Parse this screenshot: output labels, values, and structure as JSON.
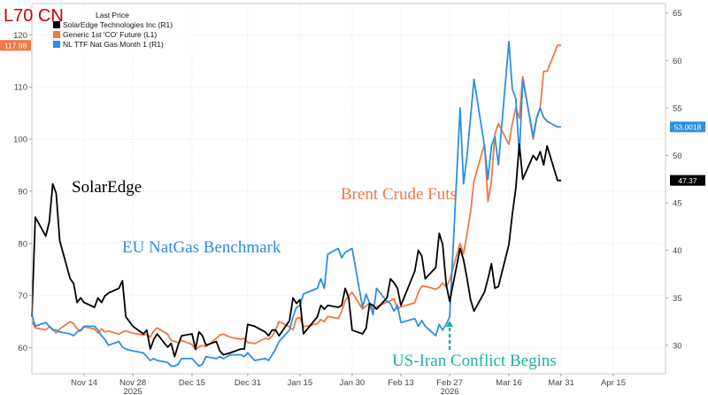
{
  "corner_label": "L70 CN",
  "chart_data": {
    "type": "line",
    "title": "",
    "legend": {
      "title": "Last Price",
      "position": "top-left",
      "entries": [
        {
          "label": "SolarEdge Technologies Inc (R1)",
          "color": "#000000"
        },
        {
          "label": "Generic 1st 'CO' Future (L1)",
          "color": "#f07842"
        },
        {
          "label": "NL TTF Nat Gas Month 1 (R1)",
          "color": "#2b8fe6"
        }
      ]
    },
    "x_axis": {
      "ticks": [
        {
          "date": "2025-11-14",
          "label": "Nov 14"
        },
        {
          "date": "2025-11-28",
          "label": "Nov 28"
        },
        {
          "date": "2025-12-15",
          "label": "Dec 15"
        },
        {
          "date": "2025-12-31",
          "label": "Dec 31"
        },
        {
          "date": "2026-01-15",
          "label": "Jan 15"
        },
        {
          "date": "2026-01-30",
          "label": "Jan 30"
        },
        {
          "date": "2026-02-13",
          "label": "Feb 13"
        },
        {
          "date": "2026-02-27",
          "label": "Feb 27"
        },
        {
          "date": "2026-03-16",
          "label": "Mar 16"
        },
        {
          "date": "2026-03-31",
          "label": "Mar 31"
        },
        {
          "date": "2026-04-15",
          "label": "Apr 15"
        }
      ],
      "year_labels": [
        {
          "date": "2025-11-28",
          "label": "2025"
        },
        {
          "date": "2026-02-27",
          "label": "2026"
        }
      ],
      "range": [
        "2025-10-30",
        "2026-04-30"
      ]
    },
    "left_axis": {
      "ticks": [
        60,
        70,
        80,
        90,
        100,
        110,
        120
      ],
      "range": [
        55,
        126
      ]
    },
    "right_axis": {
      "ticks": [
        30,
        35,
        40,
        45,
        50,
        55,
        60,
        65
      ],
      "range": [
        27,
        66
      ]
    },
    "last_value_tags": [
      {
        "value": 117.98,
        "label": "117.98",
        "axis": "left",
        "color": "#f07842"
      },
      {
        "value": 53.0018,
        "label": "53.0018",
        "axis": "right",
        "color": "#2b8fe6"
      },
      {
        "value": 47.37,
        "label": "47.37",
        "axis": "right",
        "color": "#000000"
      }
    ],
    "annotations": [
      {
        "text": "SolarEdge",
        "color": "#000000"
      },
      {
        "text": "EU NatGas Benchmark",
        "color": "#2b8fe6"
      },
      {
        "text": "Brent Crude Futs",
        "color": "#f07842"
      },
      {
        "text": "US-Iran Conflict Begins",
        "color": "#19b3a0"
      }
    ],
    "series": [
      {
        "name": "SolarEdge Technologies Inc (R1)",
        "axis": "right",
        "color": "#000000",
        "x": [
          "2025-10-30",
          "2025-10-31",
          "2025-11-03",
          "2025-11-04",
          "2025-11-05",
          "2025-11-06",
          "2025-11-07",
          "2025-11-10",
          "2025-11-11",
          "2025-11-12",
          "2025-11-13",
          "2025-11-14",
          "2025-11-17",
          "2025-11-18",
          "2025-11-19",
          "2025-11-20",
          "2025-11-21",
          "2025-11-24",
          "2025-11-25",
          "2025-11-26",
          "2025-11-28",
          "2025-12-01",
          "2025-12-02",
          "2025-12-03",
          "2025-12-04",
          "2025-12-05",
          "2025-12-08",
          "2025-12-09",
          "2025-12-10",
          "2025-12-11",
          "2025-12-12",
          "2025-12-15",
          "2025-12-16",
          "2025-12-17",
          "2025-12-18",
          "2025-12-19",
          "2025-12-22",
          "2025-12-23",
          "2025-12-24",
          "2025-12-26",
          "2025-12-29",
          "2025-12-30",
          "2025-12-31",
          "2026-01-02",
          "2026-01-05",
          "2026-01-06",
          "2026-01-07",
          "2026-01-08",
          "2026-01-09",
          "2026-01-12",
          "2026-01-13",
          "2026-01-14",
          "2026-01-15",
          "2026-01-16",
          "2026-01-20",
          "2026-01-21",
          "2026-01-22",
          "2026-01-23",
          "2026-01-26",
          "2026-01-27",
          "2026-01-28",
          "2026-01-29",
          "2026-01-30",
          "2026-02-02",
          "2026-02-03",
          "2026-02-04",
          "2026-02-05",
          "2026-02-06",
          "2026-02-09",
          "2026-02-10",
          "2026-02-11",
          "2026-02-12",
          "2026-02-13",
          "2026-02-17",
          "2026-02-18",
          "2026-02-19",
          "2026-02-20",
          "2026-02-23",
          "2026-02-24",
          "2026-02-25",
          "2026-02-26",
          "2026-02-27",
          "2026-03-02",
          "2026-03-03",
          "2026-03-04",
          "2026-03-05",
          "2026-03-06",
          "2026-03-09",
          "2026-03-10",
          "2026-03-11",
          "2026-03-12",
          "2026-03-13",
          "2026-03-16",
          "2026-03-17",
          "2026-03-18",
          "2026-03-19",
          "2026-03-20",
          "2026-03-23",
          "2026-03-24",
          "2026-03-25",
          "2026-03-26",
          "2026-03-27",
          "2026-03-30",
          "2026-03-31"
        ],
        "y": [
          33.0,
          43.5,
          41.5,
          43.0,
          47.0,
          46.0,
          41.0,
          37.0,
          36.5,
          34.5,
          35.0,
          34.5,
          34.0,
          35.0,
          34.5,
          35.2,
          35.5,
          36.0,
          36.8,
          33.0,
          32.0,
          31.2,
          31.6,
          29.6,
          30.6,
          31.2,
          29.8,
          30.2,
          28.8,
          30.0,
          31.0,
          31.2,
          29.6,
          31.4,
          31.0,
          30.0,
          30.4,
          29.4,
          29.0,
          29.2,
          29.6,
          29.6,
          32.2,
          32.0,
          31.4,
          31.0,
          31.6,
          31.6,
          31.0,
          32.6,
          35.0,
          34.4,
          34.8,
          31.2,
          33.0,
          34.2,
          33.8,
          34.2,
          34.0,
          34.2,
          36.0,
          35.0,
          31.6,
          31.2,
          31.8,
          34.4,
          34.2,
          33.8,
          35.0,
          37.0,
          36.6,
          36.0,
          34.2,
          37.8,
          40.0,
          39.4,
          37.0,
          38.2,
          41.8,
          40.6,
          36.4,
          34.6,
          40.2,
          39.0,
          37.0,
          34.8,
          33.6,
          35.6,
          37.0,
          38.6,
          36.0,
          36.2,
          40.6,
          43.8,
          46.5,
          51.2,
          47.5,
          50.0,
          49.5,
          50.4,
          49.0,
          51.0,
          47.37,
          47.37
        ]
      },
      {
        "name": "Generic 1st 'CO' Future (L1)",
        "axis": "left",
        "color": "#f07842",
        "x": [
          "2025-10-30",
          "2025-10-31",
          "2025-11-03",
          "2025-11-04",
          "2025-11-05",
          "2025-11-06",
          "2025-11-07",
          "2025-11-10",
          "2025-11-11",
          "2025-11-12",
          "2025-11-13",
          "2025-11-14",
          "2025-11-17",
          "2025-11-18",
          "2025-11-19",
          "2025-11-20",
          "2025-11-21",
          "2025-11-24",
          "2025-11-25",
          "2025-11-26",
          "2025-11-28",
          "2025-12-01",
          "2025-12-02",
          "2025-12-03",
          "2025-12-04",
          "2025-12-05",
          "2025-12-08",
          "2025-12-09",
          "2025-12-10",
          "2025-12-11",
          "2025-12-12",
          "2025-12-15",
          "2025-12-16",
          "2025-12-17",
          "2025-12-18",
          "2025-12-19",
          "2025-12-22",
          "2025-12-23",
          "2025-12-24",
          "2025-12-26",
          "2025-12-29",
          "2025-12-30",
          "2025-12-31",
          "2026-01-02",
          "2026-01-05",
          "2026-01-06",
          "2026-01-07",
          "2026-01-08",
          "2026-01-09",
          "2026-01-12",
          "2026-01-13",
          "2026-01-14",
          "2026-01-15",
          "2026-01-16",
          "2026-01-20",
          "2026-01-21",
          "2026-01-22",
          "2026-01-23",
          "2026-01-26",
          "2026-01-27",
          "2026-01-28",
          "2026-01-29",
          "2026-01-30",
          "2026-02-02",
          "2026-02-03",
          "2026-02-04",
          "2026-02-05",
          "2026-02-06",
          "2026-02-09",
          "2026-02-10",
          "2026-02-11",
          "2026-02-12",
          "2026-02-13",
          "2026-02-17",
          "2026-02-18",
          "2026-02-19",
          "2026-02-20",
          "2026-02-23",
          "2026-02-24",
          "2026-02-25",
          "2026-02-26",
          "2026-02-27",
          "2026-03-02",
          "2026-03-03",
          "2026-03-04",
          "2026-03-05",
          "2026-03-06",
          "2026-03-09",
          "2026-03-10",
          "2026-03-11",
          "2026-03-12",
          "2026-03-13",
          "2026-03-16",
          "2026-03-17",
          "2026-03-18",
          "2026-03-19",
          "2026-03-20",
          "2026-03-23",
          "2026-03-24",
          "2026-03-25",
          "2026-03-26",
          "2026-03-27",
          "2026-03-30",
          "2026-03-31"
        ],
        "y": [
          65.0,
          63.8,
          63.4,
          64.0,
          63.6,
          62.8,
          63.6,
          65.0,
          64.6,
          63.6,
          63.2,
          64.0,
          63.6,
          62.8,
          63.6,
          63.0,
          63.2,
          62.6,
          63.0,
          63.2,
          62.8,
          62.4,
          62.6,
          62.0,
          63.2,
          63.8,
          62.6,
          61.4,
          61.2,
          61.0,
          61.4,
          60.6,
          59.6,
          60.2,
          60.4,
          60.2,
          61.8,
          62.4,
          62.6,
          62.0,
          61.6,
          61.8,
          61.0,
          60.8,
          61.8,
          61.6,
          62.2,
          63.4,
          65.0,
          64.0,
          63.4,
          65.6,
          65.8,
          64.0,
          64.6,
          65.4,
          65.0,
          66.0,
          65.6,
          67.0,
          69.0,
          70.0,
          70.6,
          67.4,
          68.0,
          68.6,
          67.4,
          67.8,
          68.8,
          69.0,
          69.4,
          67.4,
          67.8,
          68.6,
          70.6,
          71.8,
          71.8,
          71.2,
          71.6,
          72.4,
          71.6,
          73.0,
          80.0,
          78.0,
          82.0,
          86.0,
          92.0,
          99.0,
          88.0,
          92.0,
          101.0,
          103.0,
          99.0,
          103.0,
          106.0,
          104.0,
          112.0,
          100.0,
          104.0,
          106.0,
          113.0,
          113.0,
          117.98,
          117.98
        ]
      },
      {
        "name": "NL TTF Nat Gas Month 1 (R1)",
        "axis": "right",
        "color": "#2b8fe6",
        "x": [
          "2025-10-30",
          "2025-10-31",
          "2025-11-03",
          "2025-11-04",
          "2025-11-05",
          "2025-11-06",
          "2025-11-07",
          "2025-11-10",
          "2025-11-11",
          "2025-11-12",
          "2025-11-13",
          "2025-11-14",
          "2025-11-17",
          "2025-11-18",
          "2025-11-19",
          "2025-11-20",
          "2025-11-21",
          "2025-11-24",
          "2025-11-25",
          "2025-11-26",
          "2025-11-28",
          "2025-12-01",
          "2025-12-02",
          "2025-12-03",
          "2025-12-04",
          "2025-12-05",
          "2025-12-08",
          "2025-12-09",
          "2025-12-10",
          "2025-12-11",
          "2025-12-12",
          "2025-12-15",
          "2025-12-16",
          "2025-12-17",
          "2025-12-18",
          "2025-12-19",
          "2025-12-22",
          "2025-12-23",
          "2025-12-24",
          "2025-12-26",
          "2025-12-29",
          "2025-12-30",
          "2025-12-31",
          "2026-01-02",
          "2026-01-05",
          "2026-01-06",
          "2026-01-07",
          "2026-01-08",
          "2026-01-09",
          "2026-01-12",
          "2026-01-13",
          "2026-01-14",
          "2026-01-15",
          "2026-01-16",
          "2026-01-20",
          "2026-01-21",
          "2026-01-22",
          "2026-01-23",
          "2026-01-26",
          "2026-01-27",
          "2026-01-28",
          "2026-01-29",
          "2026-01-30",
          "2026-02-02",
          "2026-02-03",
          "2026-02-04",
          "2026-02-05",
          "2026-02-06",
          "2026-02-09",
          "2026-02-10",
          "2026-02-11",
          "2026-02-12",
          "2026-02-13",
          "2026-02-17",
          "2026-02-18",
          "2026-02-19",
          "2026-02-20",
          "2026-02-23",
          "2026-02-24",
          "2026-02-25",
          "2026-02-26",
          "2026-02-27",
          "2026-03-02",
          "2026-03-03",
          "2026-03-04",
          "2026-03-05",
          "2026-03-06",
          "2026-03-09",
          "2026-03-10",
          "2026-03-11",
          "2026-03-12",
          "2026-03-13",
          "2026-03-16",
          "2026-03-17",
          "2026-03-18",
          "2026-03-19",
          "2026-03-20",
          "2026-03-23",
          "2026-03-24",
          "2026-03-25",
          "2026-03-26",
          "2026-03-27",
          "2026-03-30",
          "2026-03-31"
        ],
        "y": [
          33.2,
          32.0,
          32.4,
          32.0,
          31.6,
          31.6,
          31.4,
          31.2,
          31.0,
          31.4,
          31.6,
          32.0,
          32.0,
          31.6,
          31.0,
          30.6,
          30.0,
          30.4,
          29.8,
          29.6,
          29.4,
          29.2,
          28.8,
          28.4,
          28.6,
          28.4,
          28.2,
          27.8,
          27.8,
          28.0,
          28.6,
          28.6,
          28.2,
          27.8,
          28.0,
          28.8,
          28.6,
          28.8,
          28.6,
          29.0,
          29.0,
          28.8,
          29.2,
          28.4,
          28.6,
          28.4,
          29.0,
          29.6,
          30.4,
          31.6,
          33.0,
          34.0,
          34.2,
          35.4,
          36.0,
          37.0,
          36.0,
          39.6,
          40.2,
          39.2,
          39.8,
          40.0,
          40.2,
          34.0,
          35.4,
          34.4,
          33.2,
          36.0,
          34.6,
          34.4,
          33.6,
          34.2,
          32.4,
          32.8,
          32.0,
          32.6,
          32.0,
          31.0,
          32.2,
          31.6,
          32.2,
          33.0,
          55.0,
          47.0,
          50.0,
          54.0,
          58.0,
          51.0,
          47.5,
          51.0,
          52.0,
          49.0,
          62.0,
          57.0,
          56.0,
          50.0,
          58.0,
          52.0,
          54.0,
          55.0,
          54.0,
          53.6,
          53.0018,
          53.0018
        ]
      }
    ]
  }
}
